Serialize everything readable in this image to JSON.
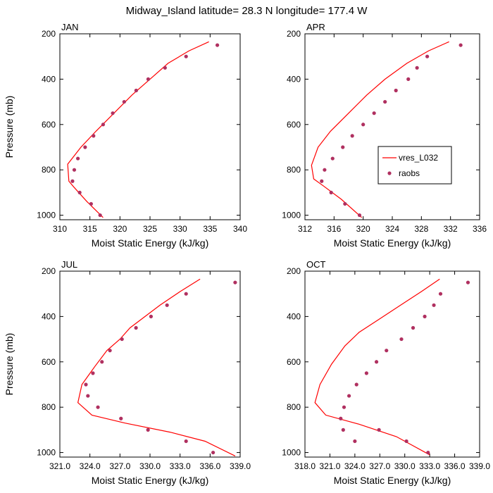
{
  "figure_title": "Midway_Island  latitude= 28.3 N longitude= 177.4 W",
  "colors": {
    "model": "#ff0000",
    "obs": "#b03060",
    "axis": "#000000"
  },
  "legend": {
    "line_label": "vres_L032",
    "marker_label": "raobs"
  },
  "chart_data": [
    {
      "type": "line",
      "panel": "JAN",
      "xlabel": "Moist Static Energy (kJ/kg)",
      "ylabel": "Pressure (mb)",
      "xlim": [
        310,
        340
      ],
      "ylim": [
        1020,
        200
      ],
      "xticks": [
        310,
        315,
        320,
        325,
        330,
        335,
        340
      ],
      "xtick_labels": [
        "310",
        "315",
        "320",
        "325",
        "330",
        "335",
        "340"
      ],
      "yticks": [
        200,
        400,
        600,
        800,
        1000
      ],
      "ytick_labels": [
        "200",
        "400",
        "600",
        "800",
        "1000"
      ],
      "series": [
        {
          "name": "vres_L032",
          "style": "line",
          "x": [
            334.8,
            331.5,
            328.0,
            325.0,
            322.0,
            319.0,
            316.0,
            313.5,
            311.3,
            311.5,
            312.3,
            314.5,
            317.2
          ],
          "y": [
            235,
            275,
            330,
            400,
            470,
            550,
            630,
            700,
            775,
            850,
            875,
            940,
            1010
          ]
        },
        {
          "name": "raobs",
          "style": "marker",
          "x": [
            336.2,
            331.0,
            327.5,
            324.7,
            322.7,
            320.7,
            318.8,
            317.2,
            315.6,
            314.2,
            313.0,
            312.4,
            312.1,
            313.3,
            315.2,
            316.7
          ],
          "y": [
            250,
            300,
            350,
            400,
            450,
            500,
            550,
            600,
            650,
            700,
            750,
            800,
            850,
            900,
            950,
            1000
          ]
        }
      ]
    },
    {
      "type": "line",
      "panel": "APR",
      "xlabel": "Moist Static Energy (kJ/kg)",
      "ylabel": "",
      "xlim": [
        312,
        336
      ],
      "ylim": [
        1020,
        200
      ],
      "xticks": [
        312,
        316,
        320,
        324,
        328,
        332,
        336
      ],
      "xtick_labels": [
        "312",
        "316",
        "320",
        "324",
        "328",
        "332",
        "336"
      ],
      "yticks": [
        200,
        400,
        600,
        800,
        1000
      ],
      "ytick_labels": [
        "200",
        "400",
        "600",
        "800",
        "1000"
      ],
      "series": [
        {
          "name": "vres_L032",
          "style": "line",
          "x": [
            331.8,
            329.0,
            326.0,
            323.0,
            320.5,
            318.0,
            315.5,
            313.8,
            312.9,
            313.2,
            314.5,
            317.0,
            319.8
          ],
          "y": [
            235,
            275,
            330,
            400,
            470,
            550,
            630,
            700,
            780,
            840,
            870,
            930,
            1010
          ]
        },
        {
          "name": "raobs",
          "style": "marker",
          "x": [
            333.4,
            328.8,
            327.4,
            326.2,
            324.5,
            323.0,
            321.5,
            320.0,
            318.5,
            317.2,
            315.8,
            314.7,
            314.3,
            315.6,
            317.5,
            319.5
          ],
          "y": [
            250,
            300,
            350,
            400,
            450,
            500,
            550,
            600,
            650,
            700,
            750,
            800,
            850,
            900,
            950,
            1000
          ]
        }
      ]
    },
    {
      "type": "line",
      "panel": "JUL",
      "xlabel": "Moist Static Energy (kJ/kg)",
      "ylabel": "Pressure (mb)",
      "xlim": [
        321,
        339
      ],
      "ylim": [
        1020,
        200
      ],
      "xticks": [
        321,
        324,
        327,
        330,
        333,
        336,
        339
      ],
      "xtick_labels": [
        "321.0",
        "324.0",
        "327.0",
        "330.0",
        "333.0",
        "336.0",
        "339.0"
      ],
      "yticks": [
        200,
        400,
        600,
        800,
        1000
      ],
      "ytick_labels": [
        "200",
        "400",
        "600",
        "800",
        "1000"
      ],
      "series": [
        {
          "name": "vres_L032",
          "style": "line",
          "x": [
            335.0,
            333.0,
            331.0,
            329.5,
            328.0,
            327.0,
            325.7,
            324.5,
            323.2,
            322.8,
            324.2,
            327.5,
            332.0,
            335.5,
            338.5
          ],
          "y": [
            235,
            290,
            350,
            400,
            450,
            500,
            550,
            620,
            700,
            780,
            835,
            870,
            910,
            950,
            1015
          ]
        },
        {
          "name": "raobs",
          "style": "marker",
          "x": [
            338.5,
            333.6,
            331.7,
            330.1,
            328.6,
            327.2,
            326.0,
            325.2,
            324.3,
            323.6,
            323.8,
            324.8,
            327.1,
            329.8,
            333.6,
            336.3
          ],
          "y": [
            250,
            300,
            350,
            400,
            450,
            500,
            550,
            600,
            650,
            700,
            750,
            800,
            850,
            900,
            950,
            1000
          ]
        }
      ]
    },
    {
      "type": "line",
      "panel": "OCT",
      "xlabel": "Moist Static Energy (kJ/kg)",
      "ylabel": "",
      "xlim": [
        318,
        339
      ],
      "ylim": [
        1020,
        200
      ],
      "xticks": [
        318,
        321,
        324,
        327,
        330,
        333,
        336,
        339
      ],
      "xtick_labels": [
        "318.0",
        "321.0",
        "324.0",
        "327.0",
        "330.0",
        "333.0",
        "336.0",
        "339.0"
      ],
      "yticks": [
        200,
        400,
        600,
        800,
        1000
      ],
      "ytick_labels": [
        "200",
        "400",
        "600",
        "800",
        "1000"
      ],
      "series": [
        {
          "name": "vres_L032",
          "style": "line",
          "x": [
            334.2,
            332.0,
            329.5,
            327.0,
            324.5,
            322.8,
            321.2,
            319.8,
            319.2,
            320.5,
            324.5,
            329.0,
            333.0
          ],
          "y": [
            235,
            290,
            350,
            410,
            470,
            530,
            610,
            700,
            780,
            835,
            875,
            930,
            1010
          ]
        },
        {
          "name": "raobs",
          "style": "marker",
          "x": [
            337.6,
            334.3,
            333.5,
            332.4,
            331.0,
            329.6,
            327.8,
            326.6,
            325.4,
            324.2,
            323.3,
            322.7,
            322.3,
            322.6,
            324.0,
            326.9,
            330.2,
            332.8
          ],
          "y": [
            250,
            300,
            350,
            400,
            450,
            500,
            550,
            600,
            650,
            700,
            750,
            800,
            850,
            900,
            950,
            900,
            950,
            1000
          ]
        }
      ]
    }
  ]
}
